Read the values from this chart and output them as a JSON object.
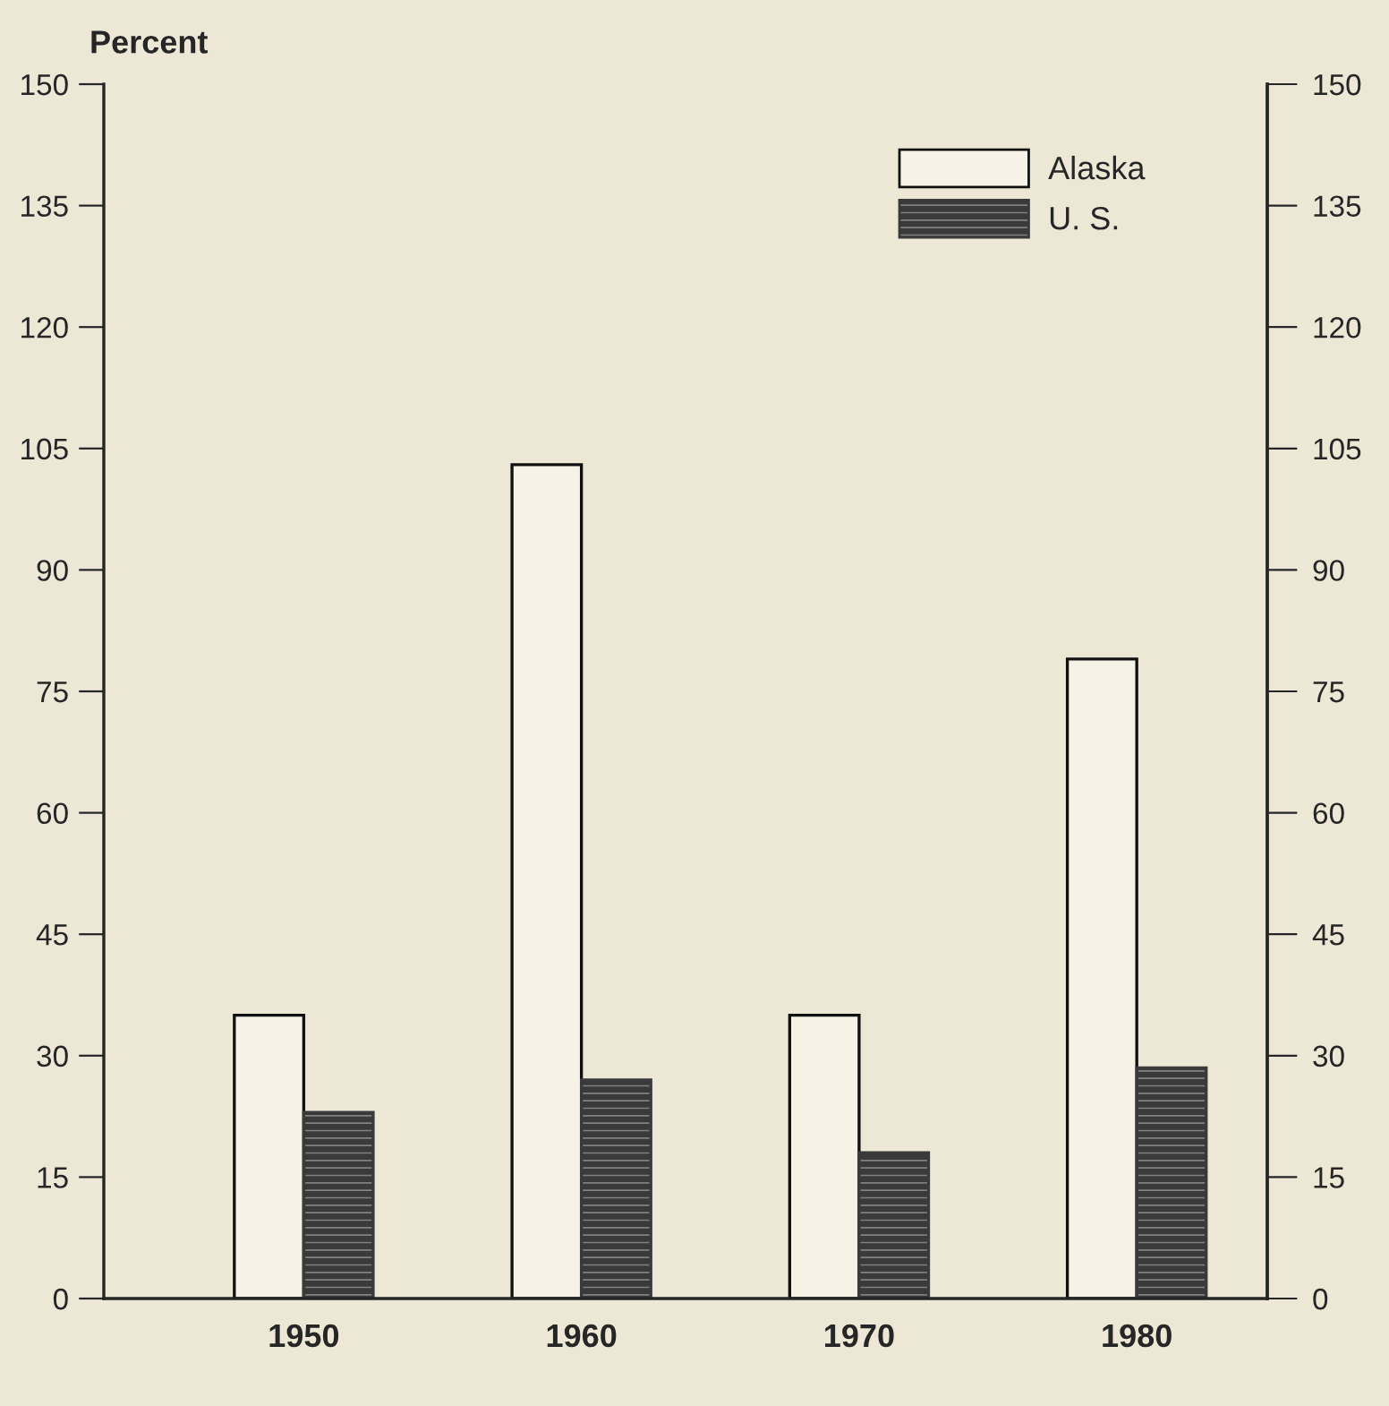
{
  "chart_data": {
    "type": "bar",
    "ylabel": "Percent",
    "categories": [
      "1950",
      "1960",
      "1970",
      "1980"
    ],
    "series": [
      {
        "name": "Alaska",
        "color": "#f6f3e6",
        "values": [
          35,
          103,
          35,
          79
        ]
      },
      {
        "name": "U. S.",
        "color": "#3a3a3a",
        "values": [
          23,
          27,
          18,
          28.5
        ]
      }
    ],
    "ylim": [
      0,
      150
    ],
    "yticks": [
      0,
      15,
      30,
      45,
      60,
      75,
      90,
      105,
      120,
      135,
      150
    ],
    "y2lim": [
      0,
      150
    ],
    "y2ticks": [
      0,
      15,
      30,
      45,
      60,
      75,
      90,
      105,
      120,
      135,
      150
    ],
    "grid": false,
    "legend": "top right"
  }
}
